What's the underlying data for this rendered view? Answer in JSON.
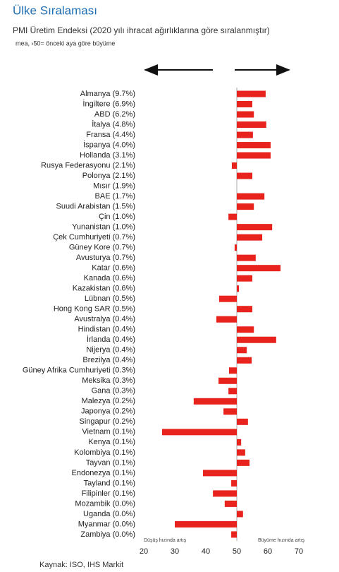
{
  "chart_data": {
    "type": "bar",
    "orientation": "horizontal",
    "title": "Ülke Sıralaması",
    "subtitle": "PMI Üretim Endeksi (2020 yılı ihracat ağırlıklarına göre sıralanmıştır)",
    "note": "mea, ›50= önceki aya göre büyüme",
    "left_annotation": "Düşüş hızında artış",
    "right_annotation": "Büyüme hızında artış",
    "source": "Kaynak: ISO, IHS Markit",
    "color": "#e8231d",
    "baseline": 50,
    "categories": [
      "Almanya (9.7%)",
      "İngiltere (6.9%)",
      "ABD (6.2%)",
      "İtalya (4.8%)",
      "Fransa (4.4%)",
      "İspanya (4.0%)",
      "Hollanda (3.1%)",
      "Rusya Federasyonu (2.1%)",
      "Polonya (2.1%)",
      "Mısır (1.9%)",
      "BAE (1.7%)",
      "Suudi Arabistan (1.5%)",
      "Çin (1.0%)",
      "Yunanistan (1.0%)",
      "Çek Cumhuriyeti (0.7%)",
      "Güney Kore (0.7%)",
      "Avusturya (0.7%)",
      "Katar (0.6%)",
      "Kanada (0.6%)",
      "Kazakistan (0.6%)",
      "Lübnan (0.5%)",
      "Hong Kong SAR (0.5%)",
      "Avustralya (0.4%)",
      "Hindistan (0.4%)",
      "İrlanda (0.4%)",
      "Nijerya (0.4%)",
      "Brezilya (0.4%)",
      "Güney Afrika Cumhuriyeti (0.3%)",
      "Meksika (0.3%)",
      "Gana (0.3%)",
      "Malezya (0.2%)",
      "Japonya (0.2%)",
      "Singapur (0.2%)",
      "Vietnam (0.1%)",
      "Kenya (0.1%)",
      "Kolombiya (0.1%)",
      "Tayvan (0.1%)",
      "Endonezya (0.1%)",
      "Tayland (0.1%)",
      "Filipinler (0.1%)",
      "Mozambik (0.0%)",
      "Uganda (0.0%)",
      "Myanmar (0.0%)",
      "Zambiya (0.0%)"
    ],
    "values": [
      59.3,
      55,
      55.5,
      59.5,
      55.2,
      60.9,
      60.9,
      48.4,
      55,
      50,
      58.9,
      55.5,
      47.3,
      61.4,
      58.2,
      49.3,
      56.1,
      64.1,
      55,
      50.7,
      44.3,
      55,
      43.4,
      55.5,
      62.7,
      53.2,
      54.8,
      47.5,
      44.1,
      47.3,
      36.1,
      45.7,
      53.6,
      25.9,
      51.4,
      52.7,
      54.1,
      39.1,
      48.2,
      42.3,
      46.1,
      52,
      30,
      48.2
    ],
    "xlim": [
      20,
      70
    ],
    "xticks": [
      20,
      30,
      40,
      50,
      60,
      70
    ]
  }
}
